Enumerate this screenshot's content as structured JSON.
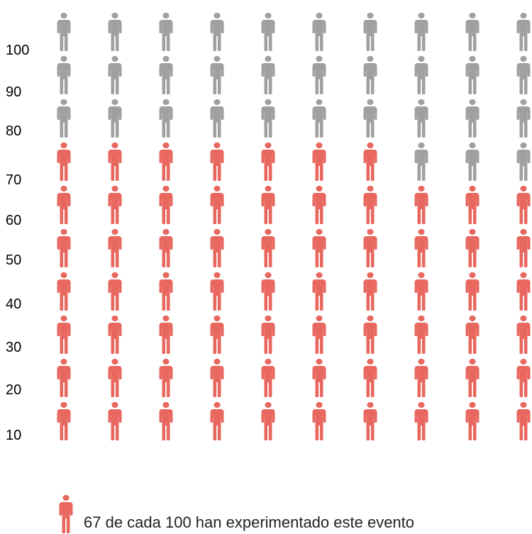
{
  "chart_data": {
    "type": "pictograph",
    "total": 100,
    "highlighted": 67,
    "columns": 10,
    "rows": 10,
    "fill_order": "bottom-to-top, left-to-right",
    "highlight_color": "#E8675F",
    "base_color": "#A0A0A0",
    "icon": "person-icon",
    "y_ticks": [
      "10",
      "20",
      "30",
      "40",
      "50",
      "60",
      "70",
      "80",
      "90",
      "100"
    ],
    "legend": {
      "icon": "person-icon",
      "text": "67 de cada 100 han experimentado este evento"
    }
  }
}
